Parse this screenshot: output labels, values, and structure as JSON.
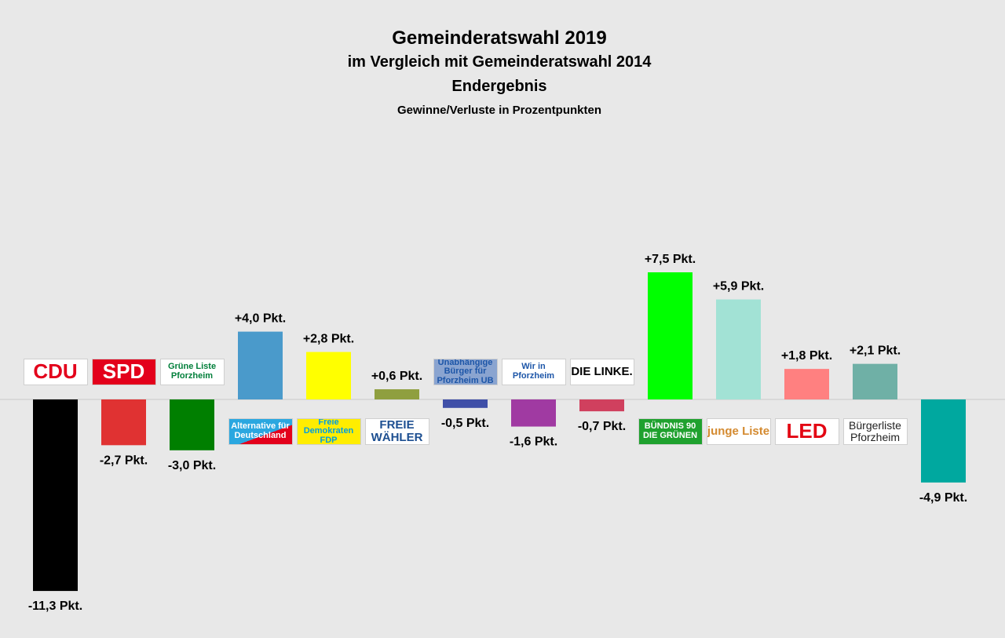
{
  "chart_data": {
    "type": "bar",
    "title": "Gemeinderatswahl 2019",
    "subtitle": "im Vergleich mit Gemeinderatswahl 2014",
    "subtitle2": "Endergebnis",
    "caption": "Gewinne/Verluste in Prozentpunkten",
    "ylabel": "Prozentpunkte",
    "unit": "Pkt.",
    "categories": [
      "CDU",
      "SPD",
      "Grüne Liste Pforzheim",
      "Alternative für Deutschland",
      "Freie Demokraten FDP",
      "Freie Wähler",
      "Unabhängige Bürger für Pforzheim",
      "Wir in Pforzheim",
      "Die Linke",
      "Bündnis 90 Die Grünen",
      "Junge Liste",
      "LED",
      "Bürgerliste Pforzheim",
      ""
    ],
    "values": [
      -11.3,
      -2.7,
      -3.0,
      4.0,
      2.8,
      0.6,
      -0.5,
      -1.6,
      -0.7,
      7.5,
      5.9,
      1.8,
      2.1,
      -4.9
    ],
    "labels": [
      "-11,3 Pkt.",
      "-2,7 Pkt.",
      "-3,0 Pkt.",
      "+4,0 Pkt.",
      "+2,8 Pkt.",
      "+0,6 Pkt.",
      "-0,5 Pkt.",
      "-1,6 Pkt.",
      "-0,7 Pkt.",
      "+7,5 Pkt.",
      "+5,9 Pkt.",
      "+1,8 Pkt.",
      "+2,1 Pkt.",
      "-4,9 Pkt."
    ],
    "colors": [
      "#000000",
      "#e03232",
      "#007f00",
      "#4a9acb",
      "#ffff00",
      "#8f9f3f",
      "#3f4fa8",
      "#a03aa2",
      "#d0405e",
      "#00ff00",
      "#a2e2d5",
      "#ff8080",
      "#6fb0a6",
      "#00a89f"
    ],
    "logos": [
      {
        "text": "CDU",
        "bg": "#ffffff",
        "fg": "#e3001b"
      },
      {
        "text": "SPD",
        "bg": "#e3001b",
        "fg": "#ffffff"
      },
      {
        "text": "Grüne Liste Pforzheim",
        "bg": "#ffffff",
        "fg": "#007f3a"
      },
      {
        "text": "Alternative für Deutschland",
        "bg": "#ffffff",
        "fg": "#ffffff"
      },
      {
        "text": "Freie Demokraten FDP",
        "bg": "#ffed00",
        "fg": "#009ee0"
      },
      {
        "text": "FREIE WÄHLER",
        "bg": "#ffffff",
        "fg": "#1d4f91"
      },
      {
        "text": "Unabhängige Bürger für Pforzheim UB",
        "bg": "#8aa4d0",
        "fg": "#1d56a8"
      },
      {
        "text": "Wir in Pforzheim",
        "bg": "#ffffff",
        "fg": "#1d56a8"
      },
      {
        "text": "DIE LINKE.",
        "bg": "#ffffff",
        "fg": "#000000"
      },
      {
        "text": "BÜNDNIS 90 DIE GRÜNEN",
        "bg": "#1fa12e",
        "fg": "#ffffff"
      },
      {
        "text": "junge Liste",
        "bg": "#ffffff",
        "fg": "#d48a30"
      },
      {
        "text": "LED",
        "bg": "#ffffff",
        "fg": "#e30613"
      },
      {
        "text": "Bürgerliste Pforzheim",
        "bg": "#ffffff",
        "fg": "#222222"
      },
      null
    ]
  }
}
